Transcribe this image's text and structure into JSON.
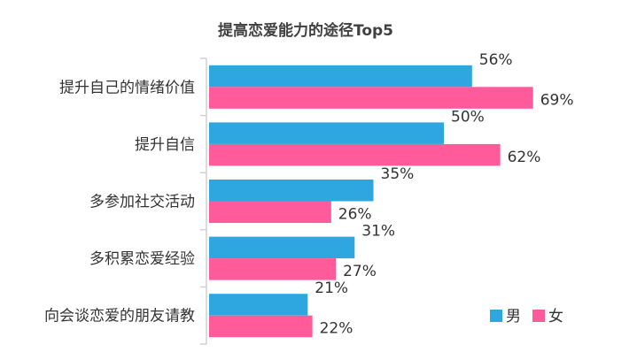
{
  "chart_data": {
    "type": "bar",
    "orientation": "horizontal",
    "title": "提高恋爱能力的途径Top5",
    "categories": [
      "提升自己的情绪价值",
      "提升自信",
      "多参加社交活动",
      "多积累恋爱经验",
      "向会谈恋爱的朋友请教"
    ],
    "series": [
      {
        "name": "男",
        "values": [
          56,
          50,
          35,
          31,
          21
        ],
        "labels": [
          "56%",
          "50%",
          "35%",
          "31%",
          "21%"
        ],
        "color": "#2EA7E0"
      },
      {
        "name": "女",
        "values": [
          69,
          62,
          26,
          27,
          22
        ],
        "labels": [
          "69%",
          "62%",
          "26%",
          "27%",
          "22%"
        ],
        "color": "#FF5A9A"
      }
    ],
    "xlim": [
      0,
      100
    ],
    "unit": "%",
    "grid": false,
    "legend": "bottom-right"
  }
}
